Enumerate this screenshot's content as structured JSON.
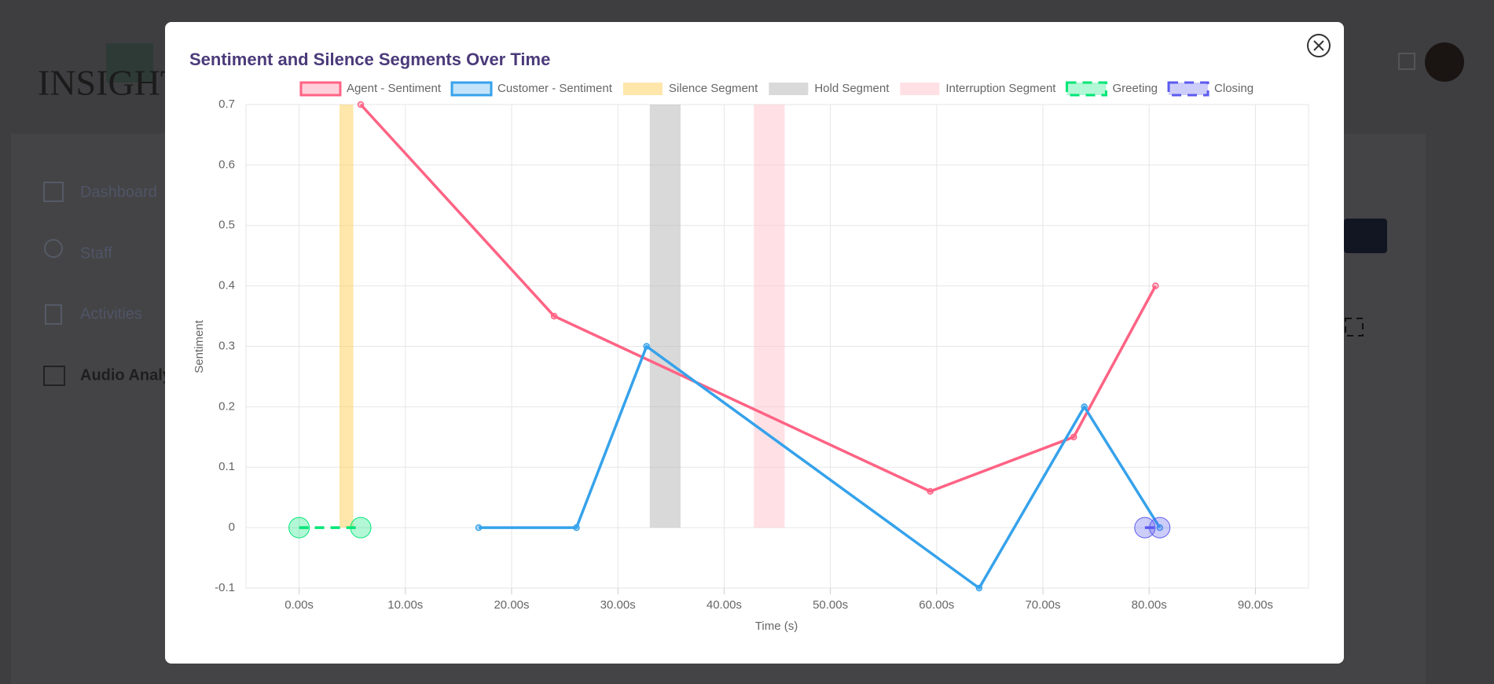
{
  "app": {
    "logo": "INSIGHT",
    "nav": [
      "Dashboard",
      "Staff",
      "Activities",
      "Audio Analysis"
    ]
  },
  "chart_data": {
    "type": "line",
    "title": "Sentiment and Silence Segments Over Time",
    "x_label": "Time (s)",
    "y_label": "Sentiment",
    "xlim": [
      -5,
      95
    ],
    "xticks": [
      {
        "value": 0,
        "label": "0.00s"
      },
      {
        "value": 10,
        "label": "10.00s"
      },
      {
        "value": 20,
        "label": "20.00s"
      },
      {
        "value": 30,
        "label": "30.00s"
      },
      {
        "value": 40,
        "label": "40.00s"
      },
      {
        "value": 50,
        "label": "50.00s"
      },
      {
        "value": 60,
        "label": "60.00s"
      },
      {
        "value": 70,
        "label": "70.00s"
      },
      {
        "value": 80,
        "label": "80.00s"
      },
      {
        "value": 90,
        "label": "90.00s"
      }
    ],
    "ylim": [
      -0.1,
      0.7
    ],
    "yticks": [
      -0.1,
      0,
      0.1,
      0.2,
      0.3,
      0.4,
      0.5,
      0.6,
      0.7
    ],
    "grid": true,
    "legend": "top",
    "series": [
      {
        "name": "Agent - Sentiment",
        "type": "line",
        "color": "#ff6384",
        "x": [
          5.8,
          24,
          59.4,
          72.9,
          80.6
        ],
        "values": [
          0.7,
          0.35,
          0.06,
          0.15,
          0.4
        ]
      },
      {
        "name": "Customer - Sentiment",
        "type": "line",
        "color": "#36a2eb",
        "x": [
          16.9,
          26.1,
          32.7,
          64,
          73.9,
          81
        ],
        "values": [
          0,
          0,
          0.3,
          -0.1,
          0.2,
          0
        ]
      },
      {
        "name": "Silence Segment",
        "type": "box",
        "color": "#ffce56",
        "x": [
          3.8,
          5.1
        ],
        "values": [
          0,
          0.7
        ]
      },
      {
        "name": "Hold Segment",
        "type": "box",
        "color": "#b4b4b4",
        "x": [
          33,
          35.9
        ],
        "values": [
          0,
          0.7
        ]
      },
      {
        "name": "Interruption Segment",
        "type": "box",
        "color": "#ffc3cb",
        "x": [
          42.8,
          45.7
        ],
        "values": [
          0,
          0.7
        ]
      },
      {
        "name": "Greeting",
        "type": "dashed",
        "color": "#00e676",
        "x": [
          0,
          5.8
        ],
        "values": [
          0,
          0
        ]
      },
      {
        "name": "Closing",
        "type": "dashed",
        "color": "#5b5bf0",
        "x": [
          79.6,
          81
        ],
        "values": [
          0,
          0
        ]
      }
    ]
  }
}
